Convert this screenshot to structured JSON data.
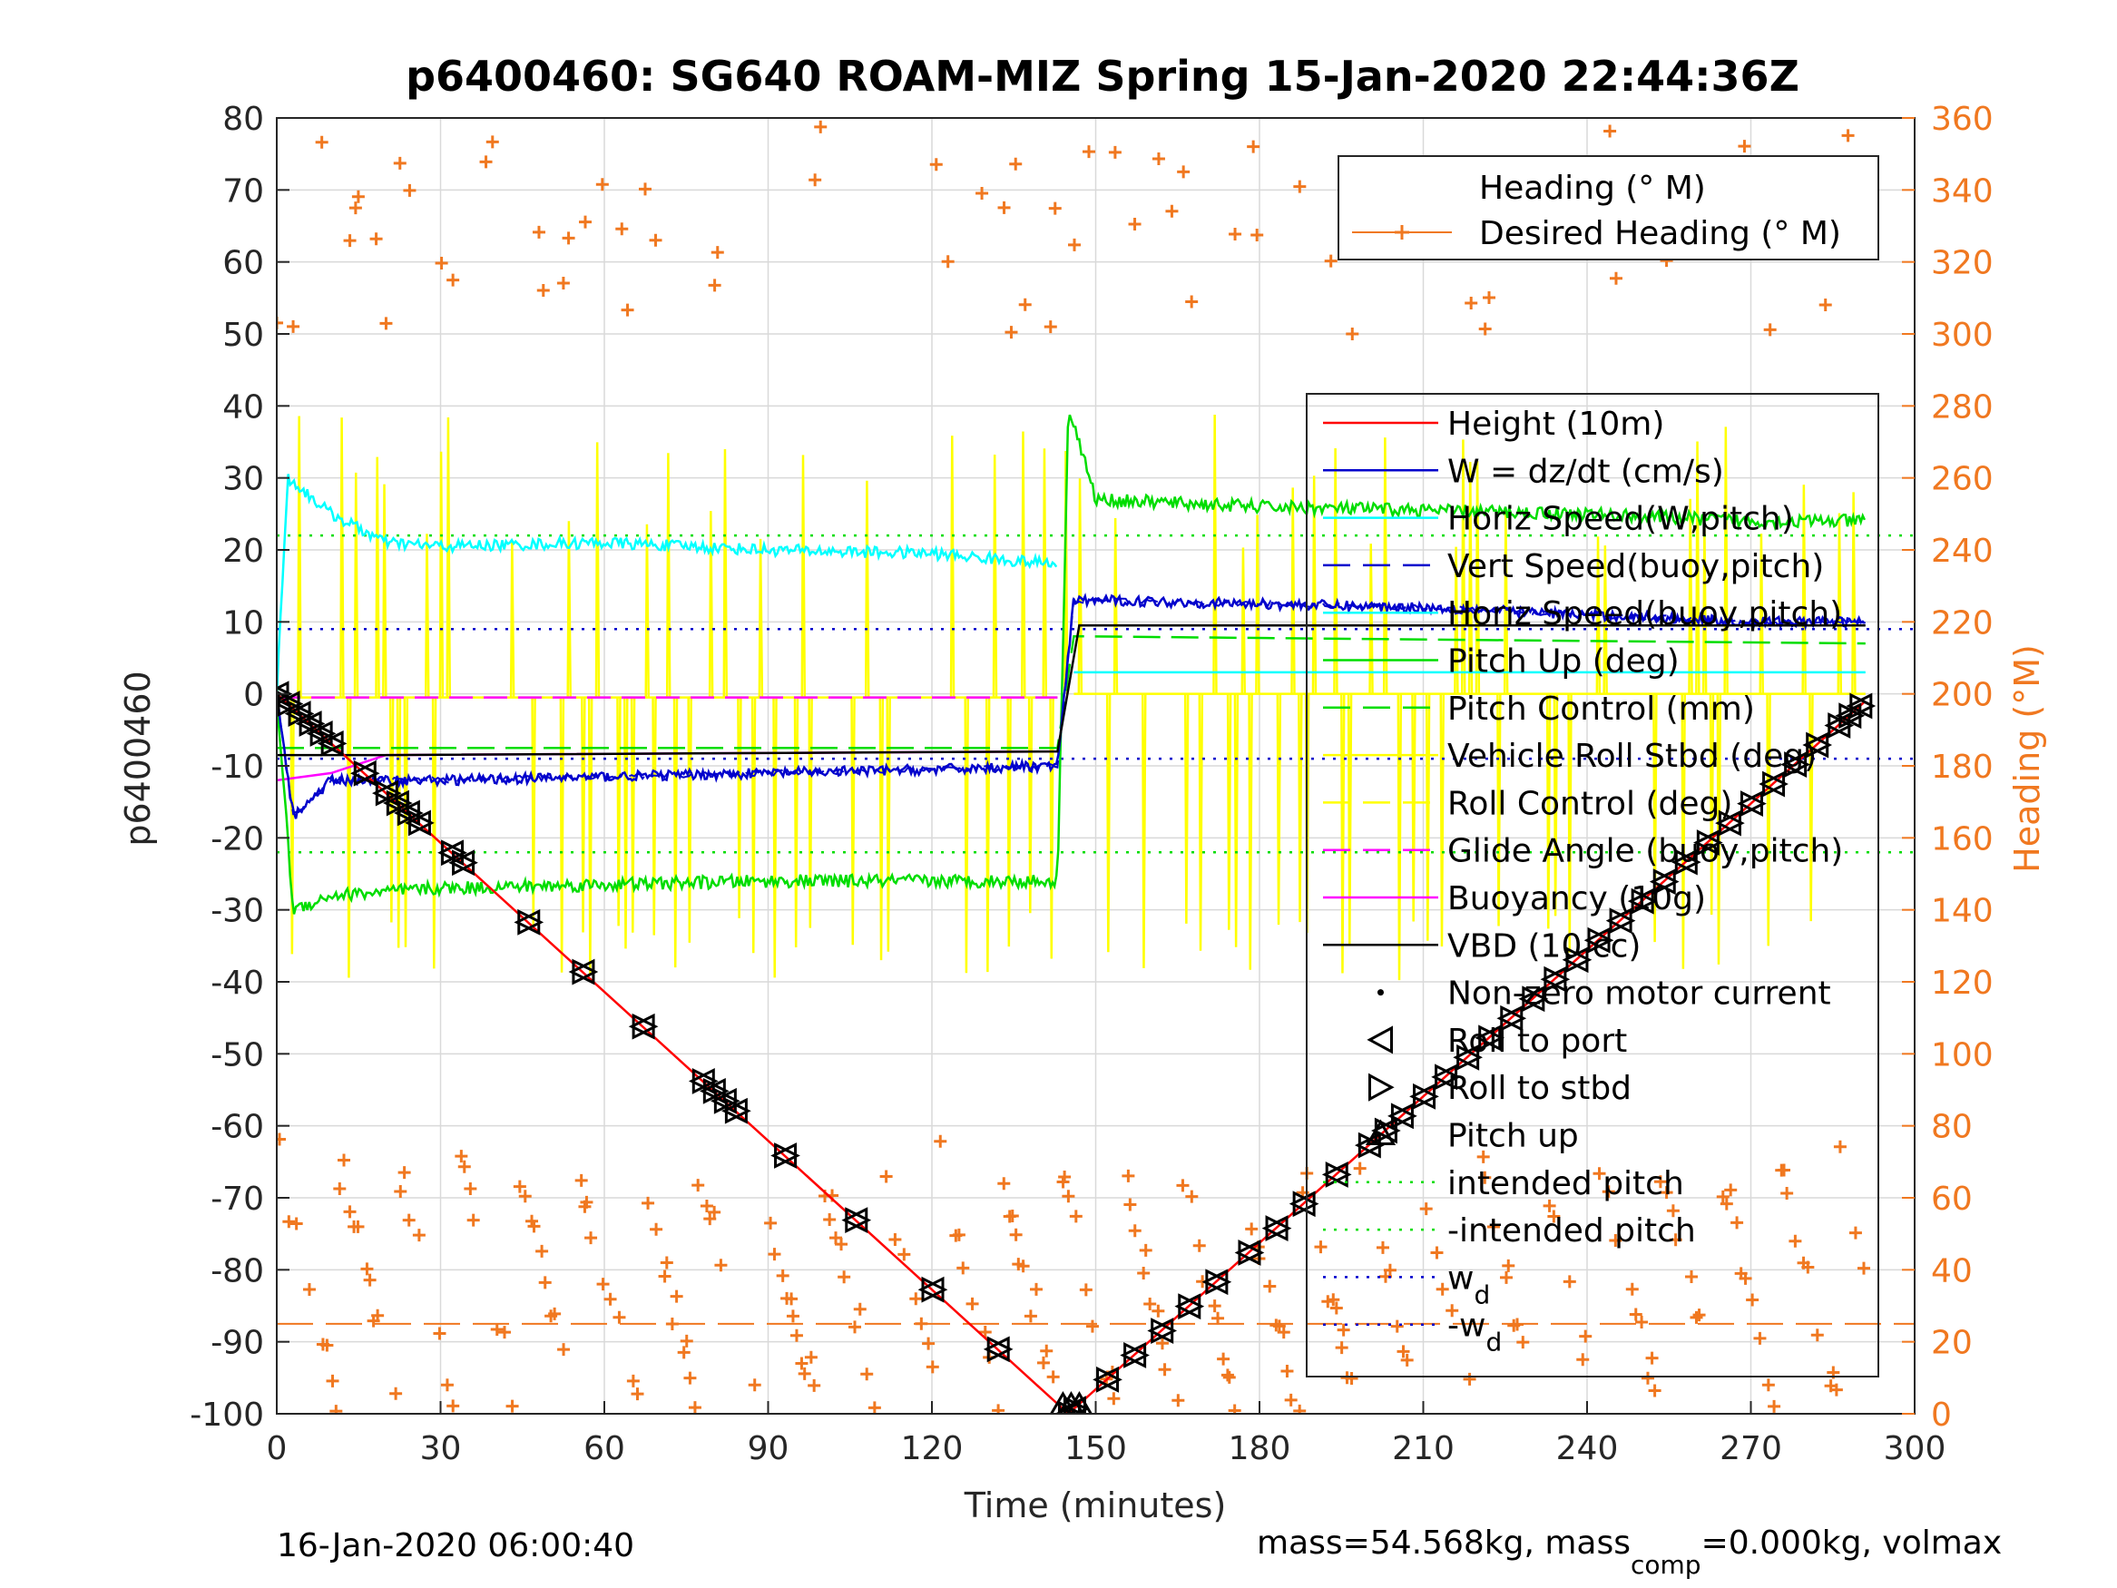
{
  "chart_data": {
    "type": "line",
    "title": "p6400460: SG640 ROAM-MIZ Spring 15-Jan-2020 22:44:36Z",
    "xlabel": "Time (minutes)",
    "ylabel": "p6400460",
    "y2label": "Heading (°M)",
    "xlim": [
      0,
      300
    ],
    "ylim": [
      -100,
      80
    ],
    "y2lim": [
      0,
      360
    ],
    "xticks": [
      "0",
      "30",
      "60",
      "90",
      "120",
      "150",
      "180",
      "210",
      "240",
      "270",
      "300"
    ],
    "yticks": [
      "80",
      "70",
      "60",
      "50",
      "40",
      "30",
      "20",
      "10",
      "0",
      "-10",
      "-20",
      "-30",
      "-40",
      "-50",
      "-60",
      "-70",
      "-80",
      "-90",
      "-100"
    ],
    "y2ticks": [
      "360",
      "340",
      "320",
      "300",
      "280",
      "260",
      "240",
      "220",
      "200",
      "180",
      "160",
      "140",
      "120",
      "100",
      "80",
      "60",
      "40",
      "20",
      "0"
    ],
    "grid": true,
    "footer_left": "16-Jan-2020 06:00:40",
    "footer_right": {
      "a": "mass=54.568kg, mass",
      "sub": "comp",
      "b": "=0.000kg, volmax"
    },
    "legend_heading": {
      "placement": "top-right",
      "entries": [
        "Heading (° M)",
        "Desired Heading (° M)"
      ]
    },
    "legend_main": {
      "placement": "right",
      "entries": [
        "Height (10m)",
        "W = dz/dt (cm/s)",
        "Horiz Speed(W,pitch)",
        "Vert Speed(buoy,pitch)",
        "Horiz Speed(buoy,pitch)",
        "Pitch Up (deg)",
        "Pitch Control (mm)",
        "Vehicle Roll Stbd (deg)",
        "Roll Control (deg)",
        "Glide Angle (buoy,pitch)",
        "Buoyancy (10g)",
        "VBD (10 cc)",
        "Non-zero motor current",
        "Roll to port",
        "Roll to stbd",
        "Pitch up",
        "intended pitch",
        "-intended pitch",
        "w",
        "-w"
      ],
      "sub_d": "d"
    },
    "colors": {
      "height": "#ff0000",
      "w": "#0000cc",
      "horiz_speed": "#00ffff",
      "pitch": "#00dd00",
      "roll": "#ffff00",
      "glide": "#ff00ff",
      "vbd": "#000000",
      "heading": "#f07820",
      "axis_right": "#f07820"
    },
    "series": [
      {
        "name": "Height (10m)",
        "x": [
          0,
          145,
          291
        ],
        "y": [
          0,
          -100,
          -1
        ]
      },
      {
        "name": "W = dz/dt (cm/s)",
        "x": [
          0,
          3,
          10,
          30,
          60,
          90,
          120,
          143,
          146,
          150,
          180,
          210,
          240,
          270,
          291
        ],
        "y": [
          0,
          -17,
          -12,
          -12,
          -11.5,
          -11,
          -10.5,
          -10,
          13,
          13,
          12.5,
          12,
          11,
          10,
          10
        ]
      },
      {
        "name": "Horiz Speed(W,pitch)",
        "x": [
          0,
          2,
          10,
          20,
          30,
          60,
          90,
          120,
          143
        ],
        "y": [
          0,
          30,
          25,
          21,
          20.5,
          21,
          20,
          19.5,
          18
        ]
      },
      {
        "name": "Horiz Speed(buoy,pitch)",
        "x": [
          146,
          291
        ],
        "y": [
          3,
          3
        ]
      },
      {
        "name": "Pitch Up (deg)",
        "x": [
          0,
          3,
          10,
          30,
          60,
          90,
          120,
          143,
          145,
          150,
          180,
          210,
          240,
          270,
          291
        ],
        "y": [
          0,
          -30,
          -28,
          -27,
          -26.5,
          -26,
          -26,
          -26,
          40,
          27,
          26,
          25.5,
          25,
          24,
          24
        ]
      },
      {
        "name": "Pitch Control (mm)",
        "x": [
          0,
          143,
          146,
          291
        ],
        "y": [
          -7.5,
          -7.5,
          8,
          7
        ]
      },
      {
        "name": "Glide Angle (buoy,pitch)",
        "x": [
          0,
          143
        ],
        "y": [
          -0.5,
          -0.5
        ]
      },
      {
        "name": "Buoyancy (10g)",
        "x": [
          0,
          10,
          20,
          143
        ],
        "y": [
          -12,
          -11,
          -8.5,
          -8
        ]
      },
      {
        "name": "VBD (10 cc)",
        "x": [
          0,
          20,
          143,
          147,
          291
        ],
        "y": [
          -8.5,
          -8.5,
          -8,
          9.5,
          9.5
        ]
      },
      {
        "name": "intended pitch",
        "x": [
          0,
          300
        ],
        "y": [
          22,
          22
        ]
      },
      {
        "name": "-intended pitch",
        "x": [
          0,
          300
        ],
        "y": [
          -22,
          -22
        ]
      },
      {
        "name": "w",
        "x": [
          0,
          300
        ],
        "y": [
          9,
          9
        ]
      },
      {
        "name": "-w",
        "x": [
          0,
          300
        ],
        "y": [
          -9,
          -9
        ]
      },
      {
        "name": "Desired Heading (° M)",
        "x": [
          0,
          300
        ],
        "y": [
          25,
          25
        ]
      }
    ],
    "roll_markers_minutes": [
      0,
      2,
      4,
      6,
      8,
      10,
      16,
      20,
      22,
      24,
      26,
      32,
      34,
      46,
      56,
      67,
      78,
      80,
      82,
      84,
      93,
      106,
      120,
      132,
      145,
      146,
      152,
      157,
      162,
      167,
      172,
      178,
      183,
      188,
      194,
      200,
      203,
      206,
      210,
      214,
      218,
      222,
      226,
      230,
      234,
      238,
      242,
      246,
      250,
      254,
      258,
      262,
      266,
      270,
      274,
      278,
      282,
      286,
      288,
      290
    ]
  }
}
